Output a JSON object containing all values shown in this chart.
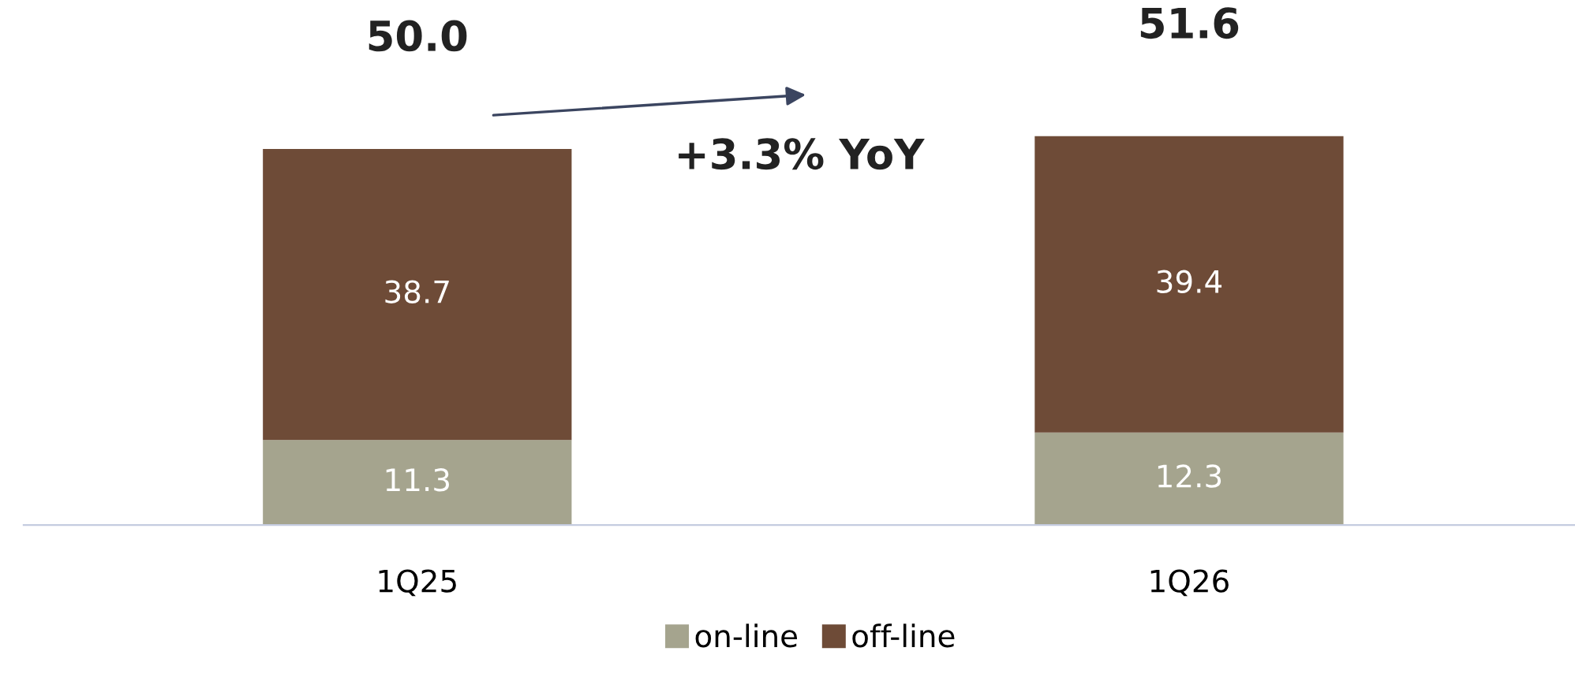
{
  "chart_data": {
    "type": "bar",
    "stacked": true,
    "categories": [
      "1Q25",
      "1Q26"
    ],
    "series": [
      {
        "name": "on-line",
        "color": "#a5a48e",
        "values": [
          11.3,
          12.3
        ]
      },
      {
        "name": "off-line",
        "color": "#6e4b37",
        "values": [
          38.7,
          39.4
        ]
      }
    ],
    "data_labels": true,
    "totals": [
      "50.0",
      "51.6"
    ],
    "annotations": [
      "+3.3% YoY"
    ],
    "legend": "bottom",
    "grid": false
  }
}
